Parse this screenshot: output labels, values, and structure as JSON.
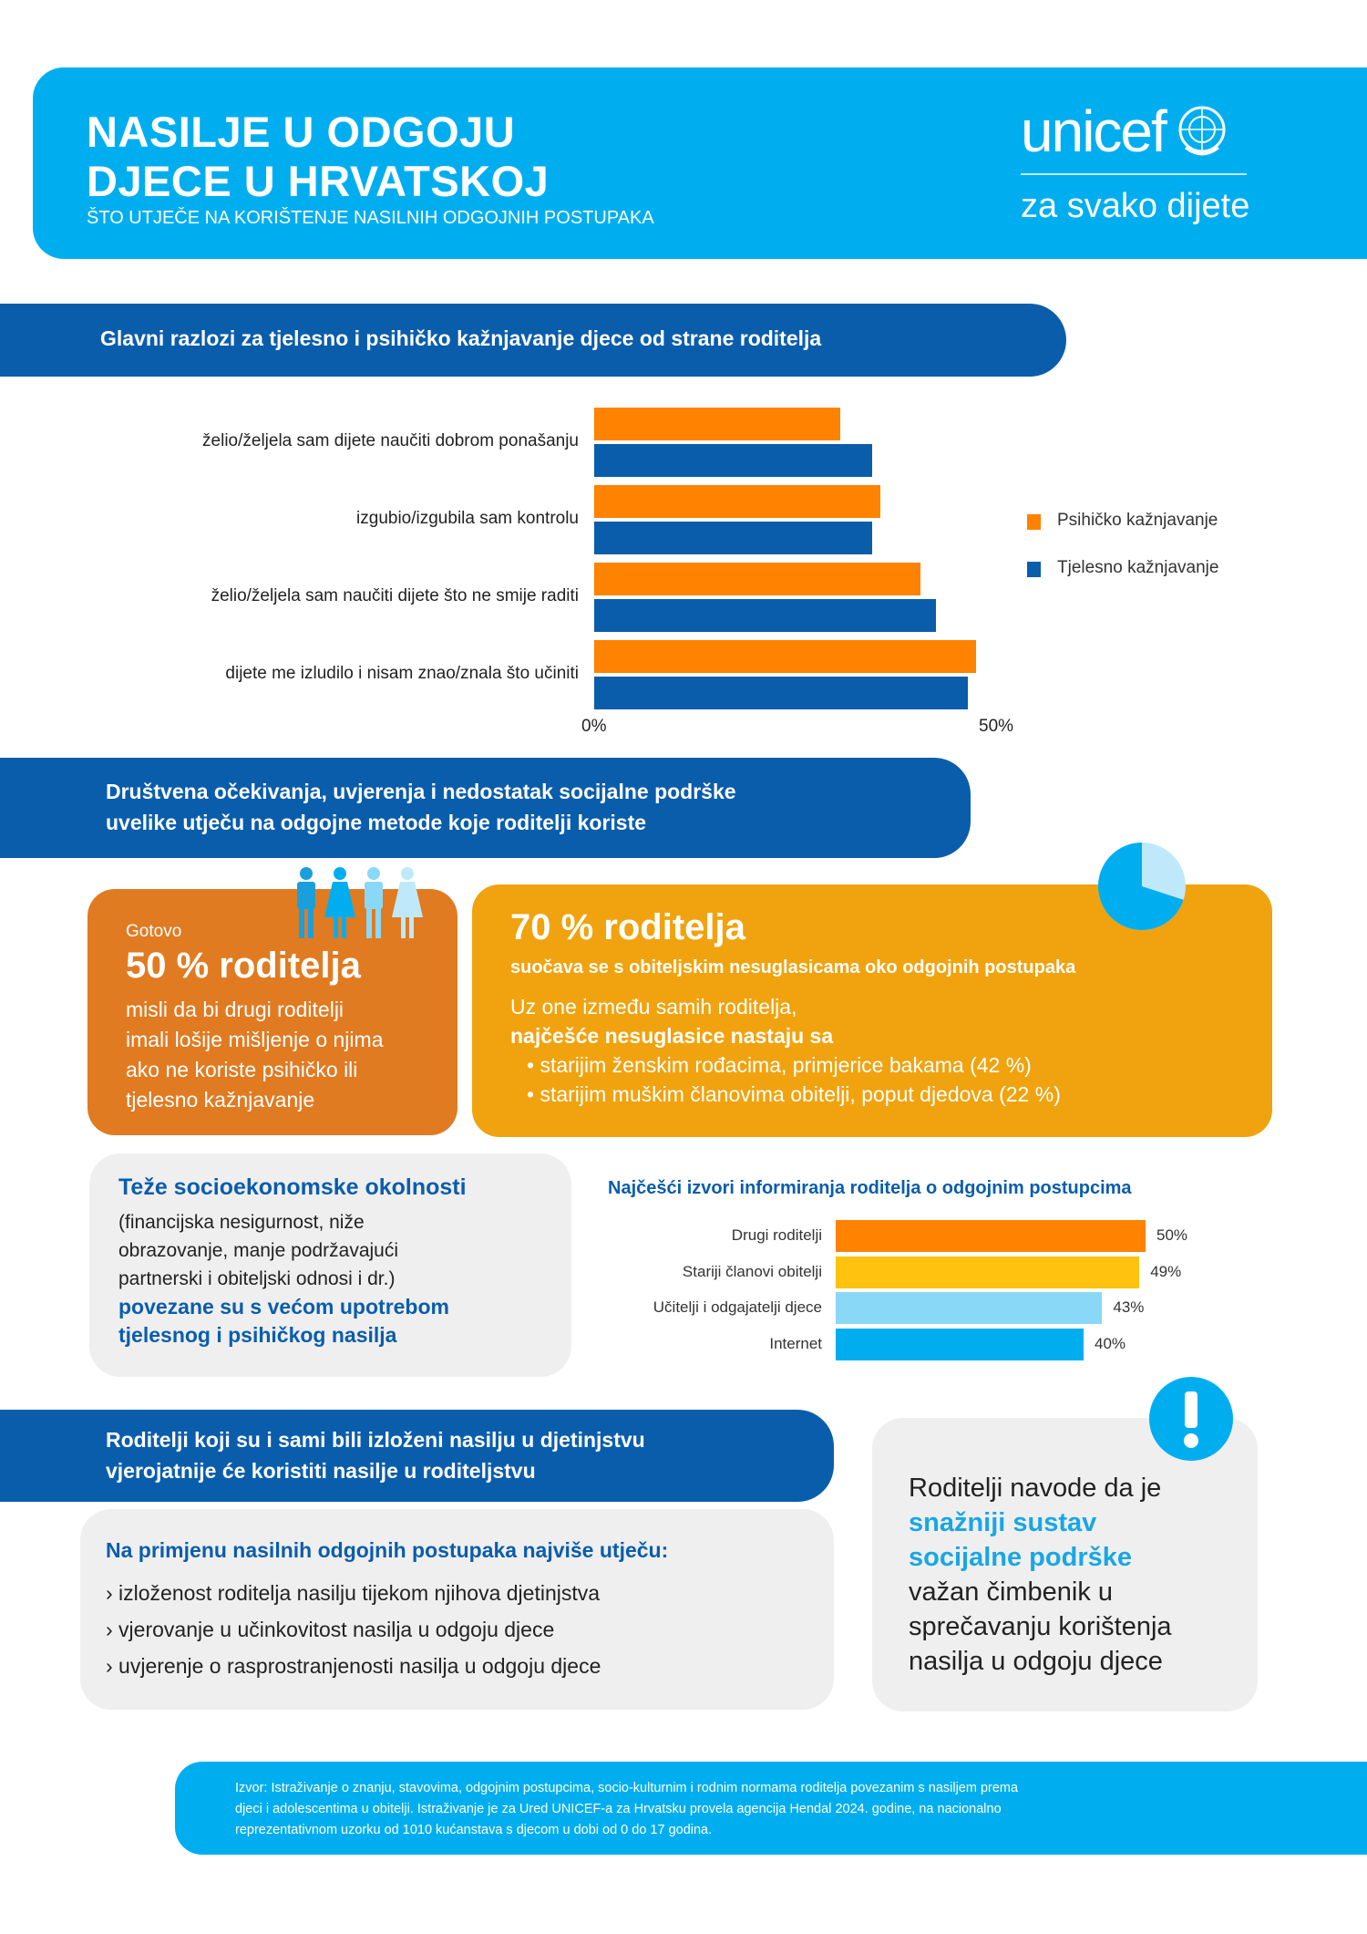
{
  "header": {
    "title_line1": "NASILJE U ODGOJU",
    "title_line2": "DJECE U HRVATSKOJ",
    "subtitle": "ŠTO UTJEČE NA KORIŠTENJE NASILNIH ODGOJNIH POSTUPAKA",
    "logo_text": "unicef",
    "tagline": "za svako dijete",
    "color": "#00aeef"
  },
  "section1": {
    "heading": "Glavni razlozi za tjelesno i psihičko kažnjavanje djece od strane roditelja"
  },
  "chart_data": [
    {
      "type": "bar",
      "orientation": "horizontal",
      "categories": [
        "želio/željela sam dijete naučiti dobrom ponašanju",
        "izgubio/izgubila sam kontrolu",
        "želio/željela sam naučiti dijete što ne smije raditi",
        "dijete me izludilo i nisam znao/znala što učiniti"
      ],
      "series": [
        {
          "name": "Psihičko kažnjavanje",
          "color": "#ff8200",
          "values": [
            31,
            36,
            41,
            48
          ]
        },
        {
          "name": "Tjelesno kažnjavanje",
          "color": "#0a5dab",
          "values": [
            35,
            35,
            43,
            47
          ]
        }
      ],
      "xlim": [
        0,
        50
      ],
      "xticks": [
        "0%",
        "50%"
      ],
      "legend": "right",
      "grid": false
    },
    {
      "type": "bar",
      "orientation": "horizontal",
      "title": "Najčešći izvori informiranja roditelja o odgojnim postupcima",
      "categories": [
        "Drugi roditelji",
        "Stariji članovi obitelji",
        "Učitelji i odgajatelji djece",
        "Internet"
      ],
      "values": [
        50,
        49,
        43,
        40
      ],
      "labels": [
        "50%",
        "49%",
        "43%",
        "40%"
      ],
      "colors": [
        "#ff8200",
        "#ffc20e",
        "#8ad8f8",
        "#00aeef"
      ],
      "xlim": [
        0,
        50
      ]
    }
  ],
  "section2": {
    "heading_line1": "Društvena očekivanja, uvjerenja i nedostatak socijalne podrške",
    "heading_line2": "uvelike utječu na odgojne metode koje roditelji koriste"
  },
  "card50": {
    "pre": "Gotovo",
    "big": "50 % roditelja",
    "lines": [
      "misli da bi drugi roditelji",
      "imali lošije mišljenje o njima",
      "ako ne koriste psihičko ili",
      "tjelesno kažnjavanje"
    ],
    "color": "#e07b22"
  },
  "card70": {
    "big": "70 % roditelja",
    "sub": "suočava se s obiteljskim nesuglasicama oko odgojnih postupaka",
    "line1": "Uz one između samih roditelja,",
    "line2": "najčešće nesuglasice nastaju sa",
    "bullets": [
      "starijim ženskim rođacima, primjerice bakama (42 %)",
      "starijim muškim članovima obitelji, poput djedova (22 %)"
    ],
    "color": "#f0a30f",
    "pie_value": 70
  },
  "socio": {
    "title": "Teže socioekonomske okolnosti",
    "lines": [
      "(financijska nesigurnost, niže",
      "obrazovanje, manje podržavajući",
      "partnerski i obiteljski odnosi i dr.)"
    ],
    "bold1": "povezane su s većom upotrebom",
    "bold2": "tjelesnog i psihičkog nasilja"
  },
  "section3": {
    "heading_line1": "Roditelji koji su i sami bili izloženi nasilju u djetinjstvu",
    "heading_line2": "vjerojatnije će koristiti nasilje u roditeljstvu"
  },
  "factors": {
    "title": "Na primjenu nasilnih odgojnih postupaka najviše utječu:",
    "items": [
      "› izloženost roditelja nasilju tijekom njihova djetinjstva",
      "› vjerovanje u učinkovitost nasilja u odgoju djece",
      "› uvjerenje o rasprostranjenosti nasilja u odgoju djece"
    ]
  },
  "support": {
    "l1": "Roditelji navode da je",
    "h1": "snažniji sustav",
    "h2": "socijalne podrške",
    "l2": "važan čimbenik u",
    "l3": "sprečavanju korištenja",
    "l4": "nasilja u odgoju djece"
  },
  "footer": {
    "l1": "Izvor: Istraživanje o znanju, stavovima, odgojnim postupcima, socio-kulturnim i rodnim normama roditelja povezanim s nasiljem prema",
    "l2": "djeci i adolescentima u obitelji. Istraživanje je za Ured UNICEF-a za Hrvatsku provela agencija Hendal 2024. godine, na nacionalno",
    "l3": "reprezentativnom uzorku od 1010 kućanstava s djecom u dobi od 0 do 17 godina."
  }
}
